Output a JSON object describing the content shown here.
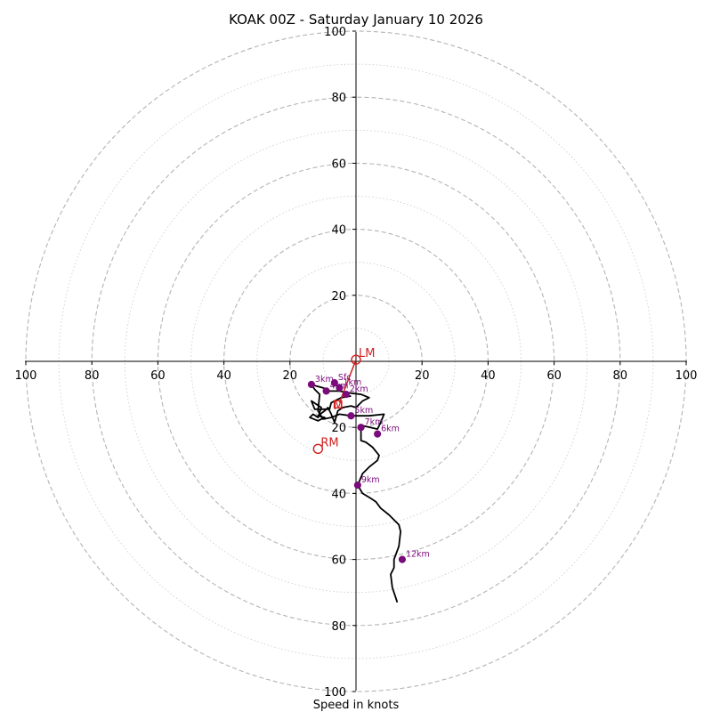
{
  "chart_data": {
    "type": "hodograph",
    "title": "KOAK 00Z - Saturday January 10 2026",
    "xlabel": "Speed in knots",
    "range": [
      -100,
      100
    ],
    "major_ticks": [
      20,
      40,
      60,
      80,
      100
    ],
    "tick_labels": [
      "100",
      "80",
      "60",
      "40",
      "20",
      "20",
      "40",
      "60",
      "80",
      "100"
    ],
    "y_tick_labels": [
      "100",
      "80",
      "60",
      "40",
      "20",
      "20",
      "40",
      "60",
      "80",
      "100"
    ],
    "ring_step": 10,
    "units": "knots",
    "hodograph": [
      [
        -1.5,
        -10.5
      ],
      [
        -4.5,
        -11
      ],
      [
        -7.5,
        -12.5
      ],
      [
        -8,
        -14.5
      ],
      [
        -12.5,
        -14.5
      ],
      [
        -13.5,
        -12
      ],
      [
        -10.5,
        -14
      ],
      [
        -11.5,
        -17
      ],
      [
        -13,
        -16
      ],
      [
        -14,
        -17
      ],
      [
        -11.5,
        -18
      ],
      [
        -10.5,
        -17.5
      ],
      [
        -9.5,
        -17
      ],
      [
        -11.5,
        -16.5
      ],
      [
        -9.5,
        -15
      ],
      [
        -8.5,
        -14
      ],
      [
        -7.5,
        -16
      ],
      [
        -6.5,
        -18.5
      ],
      [
        -5.5,
        -15
      ],
      [
        -4,
        -14
      ],
      [
        -1.5,
        -13.5
      ],
      [
        0,
        -14
      ],
      [
        2,
        -12
      ],
      [
        4,
        -11
      ],
      [
        1.5,
        -10
      ],
      [
        -2.5,
        -9.5
      ],
      [
        -5,
        -9
      ],
      [
        -8,
        -9
      ],
      [
        -10,
        -8
      ],
      [
        -12,
        -7.5
      ],
      [
        -13.5,
        -7
      ],
      [
        -12.5,
        -8.5
      ],
      [
        -11,
        -10
      ],
      [
        -11.5,
        -15
      ],
      [
        -10,
        -17.5
      ],
      [
        -7.5,
        -17
      ],
      [
        -5,
        -16
      ],
      [
        -1.5,
        -16.5
      ],
      [
        4,
        -16.5
      ],
      [
        8.5,
        -16
      ],
      [
        7.5,
        -18.5
      ],
      [
        6.5,
        -20.5
      ],
      [
        2,
        -19.5
      ],
      [
        1.5,
        -21
      ],
      [
        1.5,
        -24
      ],
      [
        3,
        -24.5
      ],
      [
        5,
        -26
      ],
      [
        7,
        -28.5
      ],
      [
        6.5,
        -30
      ],
      [
        4,
        -32
      ],
      [
        2,
        -34
      ],
      [
        0.5,
        -37.5
      ],
      [
        2,
        -40
      ],
      [
        4.5,
        -41.5
      ],
      [
        6,
        -42.5
      ],
      [
        7.5,
        -44.5
      ],
      [
        10,
        -46.5
      ],
      [
        13,
        -49.5
      ],
      [
        13.5,
        -51.5
      ],
      [
        13,
        -56
      ],
      [
        11.5,
        -60
      ],
      [
        11.5,
        -62.5
      ],
      [
        10.5,
        -64.5
      ],
      [
        11,
        -68.5
      ],
      [
        12.5,
        -73
      ]
    ],
    "height_markers": [
      {
        "label": "Sfc",
        "u": -6.5,
        "v": -6.5
      },
      {
        "label": "1km",
        "u": -5,
        "v": -8
      },
      {
        "label": "2km",
        "u": -3,
        "v": -10
      },
      {
        "label": "3km",
        "u": -13.5,
        "v": -7
      },
      {
        "label": "4km",
        "u": -9,
        "v": -9
      },
      {
        "label": "5km",
        "u": -1.5,
        "v": -16.5
      },
      {
        "label": "6km",
        "u": 6.5,
        "v": -22
      },
      {
        "label": "7km",
        "u": 1.5,
        "v": -20
      },
      {
        "label": "9km",
        "u": 0.5,
        "v": -37.5
      },
      {
        "label": "12km",
        "u": 14,
        "v": -60
      }
    ],
    "storm_motions": [
      {
        "label": "LM",
        "u": 0,
        "v": 0.5
      },
      {
        "label": "RM",
        "u": -11.5,
        "v": -26.5
      }
    ],
    "mean_wind": {
      "label": "M",
      "u": -5.5,
      "v": -13
    },
    "shear_vector": {
      "from": [
        0,
        0.5
      ],
      "to": [
        -5,
        -12.5
      ]
    }
  }
}
